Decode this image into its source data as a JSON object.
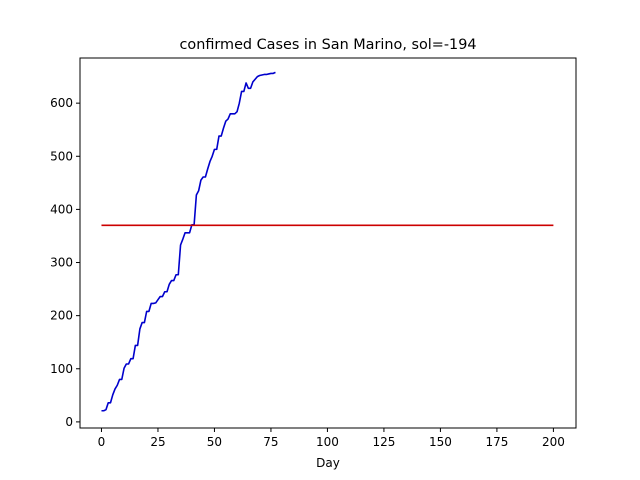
{
  "chart_data": {
    "type": "line",
    "title": "confirmed Cases in San Marino, sol=-194",
    "xlabel": "Day",
    "ylabel": "",
    "xlim": [
      -9.5,
      210.0
    ],
    "ylim": [
      -11.5,
      685.0
    ],
    "x_ticks": [
      0,
      25,
      50,
      75,
      100,
      125,
      150,
      175,
      200
    ],
    "y_ticks": [
      0,
      100,
      200,
      300,
      400,
      500,
      600
    ],
    "grid": false,
    "series": [
      {
        "color": "#0000cc",
        "x": [
          0,
          1,
          2,
          3,
          4,
          5,
          6,
          7,
          8,
          9,
          10,
          11,
          12,
          13,
          14,
          15,
          16,
          17,
          18,
          19,
          20,
          21,
          22,
          23,
          24,
          25,
          26,
          27,
          28,
          29,
          30,
          31,
          32,
          33,
          34,
          35,
          36,
          37,
          38,
          39,
          40,
          41,
          42,
          43,
          44,
          45,
          46,
          47,
          48,
          49,
          50,
          51,
          52,
          53,
          54,
          55,
          56,
          57,
          58,
          59,
          60,
          61,
          62,
          63,
          64,
          65,
          66,
          67,
          68,
          69,
          70,
          71,
          72,
          73,
          74,
          75,
          76,
          77
        ],
        "values": [
          21,
          21,
          23,
          36,
          36,
          51,
          62,
          69,
          80,
          80,
          101,
          109,
          109,
          119,
          119,
          144,
          144,
          175,
          187,
          187,
          208,
          208,
          223,
          223,
          224,
          230,
          236,
          236,
          245,
          245,
          259,
          266,
          266,
          277,
          277,
          333,
          344,
          356,
          356,
          356,
          371,
          371,
          427,
          435,
          455,
          461,
          461,
          476,
          490,
          500,
          513,
          513,
          538,
          538,
          553,
          566,
          570,
          580,
          580,
          580,
          584,
          600,
          622,
          622,
          638,
          628,
          628,
          640,
          645,
          650,
          652,
          653,
          654,
          654,
          655,
          656,
          656,
          658
        ]
      },
      {
        "color": "#cc0000",
        "x": [
          0,
          200
        ],
        "values": [
          370,
          370
        ]
      }
    ]
  }
}
